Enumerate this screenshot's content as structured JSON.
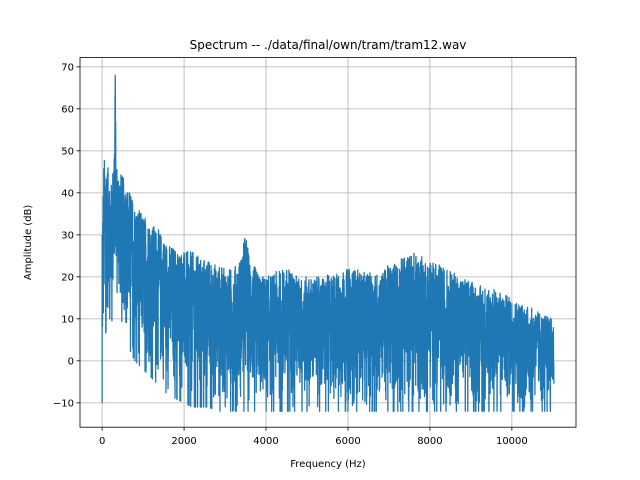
{
  "chart_data": {
    "type": "line",
    "title": "Spectrum -- ./data/final/own/tram/tram12.wav",
    "xlabel": "Frequency (Hz)",
    "ylabel": "Amplitude (dB)",
    "xlim": [
      -540,
      11565
    ],
    "ylim": [
      -15.8,
      72.2
    ],
    "xticks": [
      0,
      2000,
      4000,
      6000,
      8000,
      10000
    ],
    "yticks": [
      -10,
      0,
      10,
      20,
      30,
      40,
      50,
      60,
      70
    ],
    "grid": true,
    "line_color": "#1f77b4",
    "series": [
      {
        "name": "",
        "envelope": {
          "x": [
            0,
            40,
            80,
            120,
            170,
            220,
            260,
            300,
            320,
            340,
            400,
            500,
            600,
            700,
            800,
            1000,
            1200,
            1400,
            1600,
            1800,
            2000,
            2200,
            2400,
            2600,
            2800,
            3000,
            3200,
            3400,
            3500,
            3550,
            3600,
            3700,
            3800,
            4000,
            4200,
            4400,
            4600,
            4800,
            5000,
            5200,
            5400,
            5600,
            5800,
            6000,
            6200,
            6400,
            6600,
            6800,
            7000,
            7200,
            7400,
            7600,
            7800,
            8000,
            8200,
            8400,
            8600,
            8800,
            9000,
            9200,
            9400,
            9600,
            9800,
            10000,
            10200,
            10400,
            10600,
            10800,
            11000,
            11025
          ],
          "upper": [
            30,
            48,
            49,
            47,
            45,
            42,
            46,
            55,
            68,
            48,
            46,
            44,
            42,
            40,
            37,
            35,
            33,
            31,
            28,
            27,
            26,
            26,
            25,
            24,
            23,
            22,
            22,
            25,
            31,
            28,
            24,
            23,
            21,
            20,
            21,
            22,
            22,
            20,
            20,
            20,
            20,
            21,
            21,
            22,
            22,
            21,
            21,
            21,
            23,
            24,
            25,
            26,
            25,
            24,
            23,
            22,
            21,
            20,
            19,
            18,
            18,
            17,
            16,
            15,
            14,
            13,
            12,
            11,
            10,
            8
          ],
          "lower": [
            -10,
            0,
            6,
            9,
            10,
            10,
            9,
            12,
            22,
            12,
            11,
            9,
            5,
            2,
            0,
            -2,
            -4,
            -6,
            -8,
            -9,
            -10,
            -11,
            -11,
            -11,
            -12,
            -12,
            -12,
            -12,
            -12,
            -12,
            -12,
            -12,
            -12,
            -12,
            -12,
            -12,
            -12,
            -12,
            -12,
            -12,
            -12,
            -12,
            -12,
            -12,
            -12,
            -12,
            -12,
            -12,
            -12,
            -12,
            -12,
            -12,
            -12,
            -12,
            -12,
            -12,
            -12,
            -12,
            -12,
            -12,
            -12,
            -12,
            -12,
            -12,
            -12,
            -12,
            -12,
            -12,
            -12,
            -12
          ]
        }
      }
    ]
  }
}
